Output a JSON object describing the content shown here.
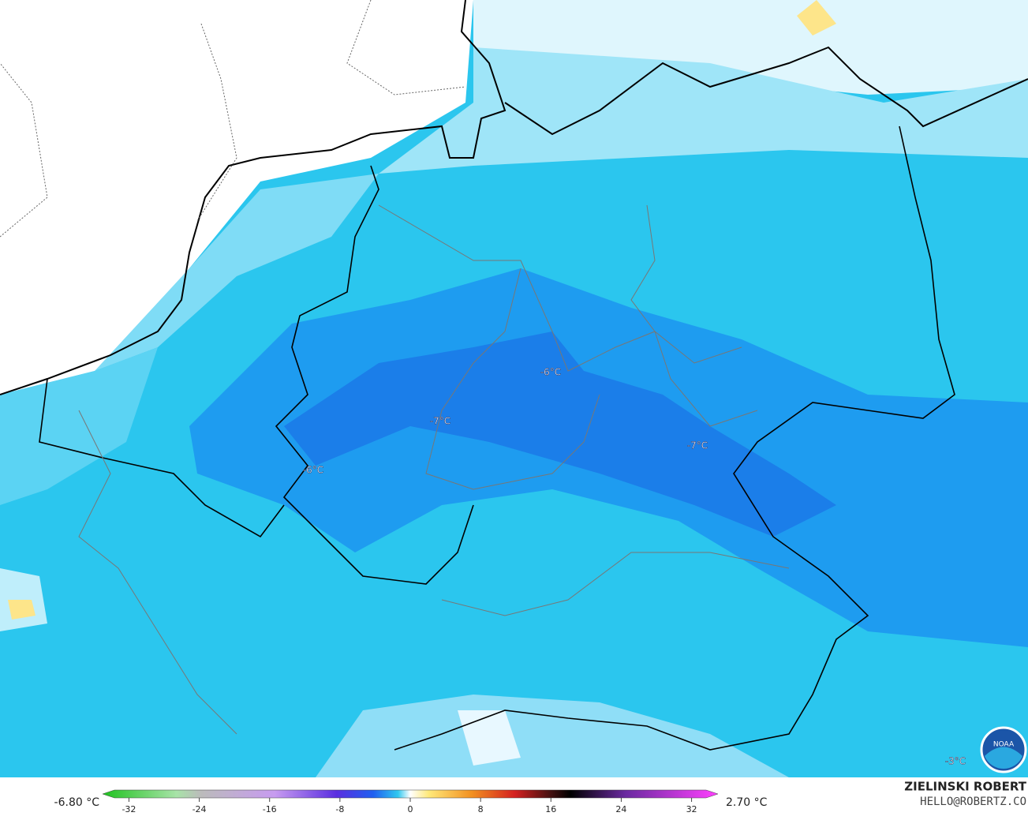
{
  "map": {
    "labels": [
      "-6°C",
      "-7°C",
      "-6°C",
      "-7°C",
      "-3°C"
    ]
  },
  "legend": {
    "min_label": "-6.80 °C",
    "max_label": "2.70 °C",
    "range": [
      -35,
      35
    ],
    "ticks": [
      -32,
      -24,
      -16,
      -8,
      0,
      8,
      16,
      24,
      32
    ]
  },
  "credit": {
    "name": "ZIELINSKI ROBERT",
    "contact": "HELLO@ROBERTZ.CO"
  },
  "logo": "NOAA"
}
